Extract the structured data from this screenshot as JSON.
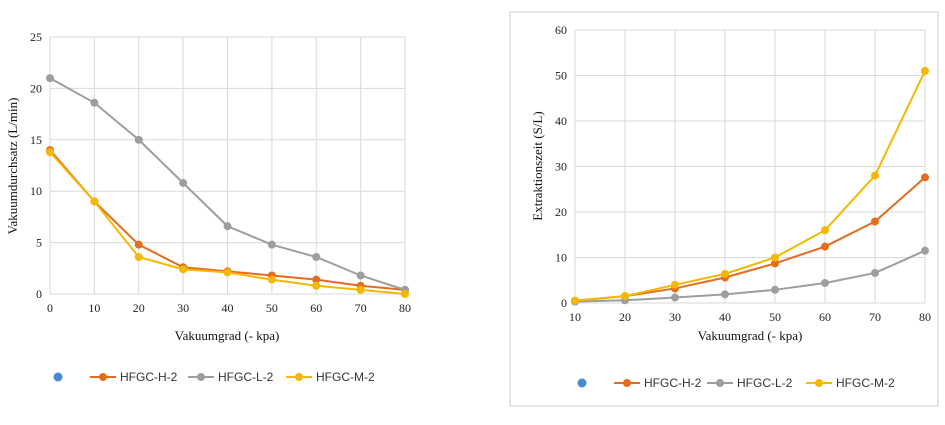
{
  "chart_data": [
    {
      "type": "line",
      "x": [
        0,
        10,
        20,
        30,
        40,
        50,
        60,
        70,
        80
      ],
      "xlim": [
        0,
        80
      ],
      "ylim": [
        0,
        25
      ],
      "xticks": [
        "0",
        "10",
        "20",
        "30",
        "40",
        "50",
        "60",
        "70",
        "80"
      ],
      "yticks": [
        "0",
        "5",
        "10",
        "15",
        "20",
        "25"
      ],
      "xlabel": "Vakuumgrad (- kpa)",
      "ylabel": "Vakuumdurchsatz (L/min)",
      "grid": true,
      "legend_position": "bottom",
      "series": [
        {
          "name": "HFGC-H-2",
          "color": "#e46c1f",
          "values": [
            14.0,
            9.0,
            4.8,
            2.6,
            2.2,
            1.8,
            1.4,
            0.8,
            0.4
          ]
        },
        {
          "name": "HFGC-L-2",
          "color": "#9e9e9e",
          "values": [
            21.0,
            18.6,
            15.0,
            10.8,
            6.6,
            4.8,
            3.6,
            1.8,
            0.4
          ]
        },
        {
          "name": "HFGC-M-2",
          "color": "#f5b800",
          "values": [
            13.8,
            9.0,
            3.6,
            2.4,
            2.1,
            1.4,
            0.8,
            0.4,
            0.0
          ]
        }
      ],
      "legend_extra_marker_color": "#4a8bd0"
    },
    {
      "type": "line",
      "x": [
        10,
        20,
        30,
        40,
        50,
        60,
        70,
        80
      ],
      "xlim": [
        10,
        80
      ],
      "ylim": [
        0,
        60
      ],
      "xticks": [
        "10",
        "20",
        "30",
        "40",
        "50",
        "60",
        "70",
        "80"
      ],
      "yticks": [
        "0",
        "10",
        "20",
        "30",
        "40",
        "50",
        "60"
      ],
      "xlabel": "Vakuumgrad (- kpa)",
      "ylabel": "Extraktionszeit (S/L)",
      "grid": true,
      "legend_position": "bottom",
      "series": [
        {
          "name": "HFGC-H-2",
          "color": "#e46c1f",
          "values": [
            0.5,
            1.5,
            3.2,
            5.6,
            8.7,
            12.4,
            17.9,
            27.6
          ]
        },
        {
          "name": "HFGC-L-2",
          "color": "#9e9e9e",
          "values": [
            0.3,
            0.6,
            1.2,
            1.9,
            2.9,
            4.4,
            6.6,
            11.5
          ]
        },
        {
          "name": "HFGC-M-2",
          "color": "#f5b800",
          "values": [
            0.5,
            1.5,
            4.0,
            6.4,
            10.0,
            16.0,
            28.0,
            51.0
          ]
        }
      ],
      "legend_extra_marker_color": "#4a8bd0"
    }
  ]
}
